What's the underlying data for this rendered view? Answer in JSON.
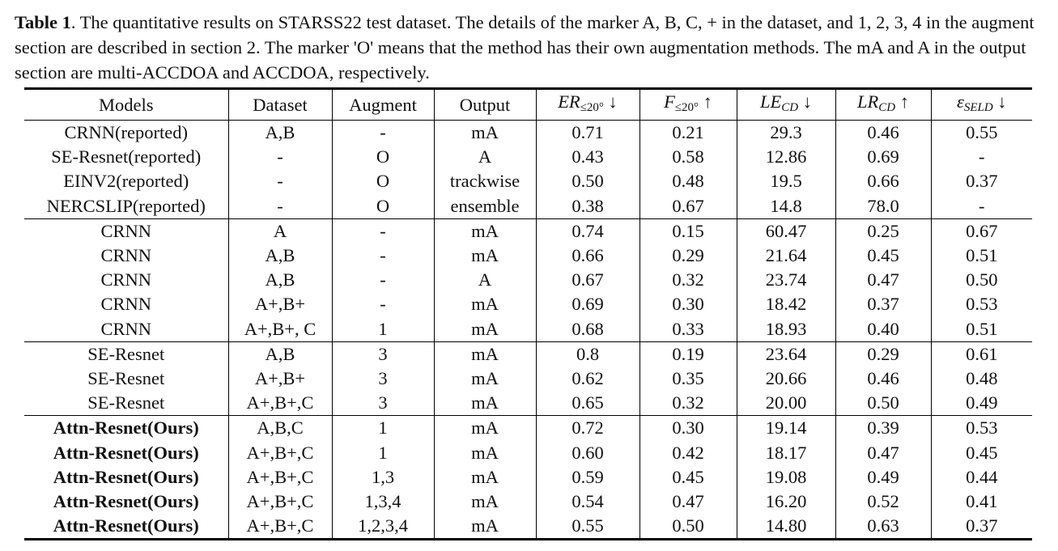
{
  "caption": {
    "label": "Table 1",
    "text": ". The quantitative results on STARSS22 test dataset. The details of the marker A, B, C, + in the dataset, and 1, 2, 3, 4 in the augment section are described in section 2. The marker 'O' means that the method has their own augmentation methods. The mA and A in the output section are multi-ACCDOA and ACCDOA, respectively."
  },
  "headers": {
    "models": "Models",
    "dataset": "Dataset",
    "augment": "Augment",
    "output": "Output",
    "er": {
      "main": "ER",
      "sub": "≤20°",
      "arrow": "↓"
    },
    "f": {
      "main": "F",
      "sub": "≤20°",
      "arrow": "↑"
    },
    "le": {
      "main": "LE",
      "sub": "CD",
      "arrow": "↓"
    },
    "lr": {
      "main": "LR",
      "sub": "CD",
      "arrow": "↑"
    },
    "seld": {
      "main": "ε",
      "sub": "SELD",
      "arrow": "↓"
    }
  },
  "rows": [
    {
      "model": "CRNN(reported)",
      "dataset": "A,B",
      "augment": "-",
      "output": "mA",
      "er": "0.71",
      "f": "0.21",
      "le": "29.3",
      "lr": "0.46",
      "seld": "0.55"
    },
    {
      "model": "SE-Resnet(reported)",
      "dataset": "-",
      "augment": "O",
      "output": "A",
      "er": "0.43",
      "f": "0.58",
      "le": "12.86",
      "lr": "0.69",
      "seld": "-"
    },
    {
      "model": "EINV2(reported)",
      "dataset": "-",
      "augment": "O",
      "output": "trackwise",
      "er": "0.50",
      "f": "0.48",
      "le": "19.5",
      "lr": "0.66",
      "seld": "0.37"
    },
    {
      "model": "NERCSLIP(reported)",
      "dataset": "-",
      "augment": "O",
      "output": "ensemble",
      "er": "0.38",
      "f": "0.67",
      "le": "14.8",
      "lr": "78.0",
      "seld": "-"
    },
    {
      "model": "CRNN",
      "dataset": "A",
      "augment": "-",
      "output": "mA",
      "er": "0.74",
      "f": "0.15",
      "le": "60.47",
      "lr": "0.25",
      "seld": "0.67"
    },
    {
      "model": "CRNN",
      "dataset": "A,B",
      "augment": "-",
      "output": "mA",
      "er": "0.66",
      "f": "0.29",
      "le": "21.64",
      "lr": "0.45",
      "seld": "0.51"
    },
    {
      "model": "CRNN",
      "dataset": "A,B",
      "augment": "-",
      "output": "A",
      "er": "0.67",
      "f": "0.32",
      "le": "23.74",
      "lr": "0.47",
      "seld": "0.50"
    },
    {
      "model": "CRNN",
      "dataset": "A+,B+",
      "augment": "-",
      "output": "mA",
      "er": "0.69",
      "f": "0.30",
      "le": "18.42",
      "lr": "0.37",
      "seld": "0.53"
    },
    {
      "model": "CRNN",
      "dataset": "A+,B+, C",
      "augment": "1",
      "output": "mA",
      "er": "0.68",
      "f": "0.33",
      "le": "18.93",
      "lr": "0.40",
      "seld": "0.51"
    },
    {
      "model": "SE-Resnet",
      "dataset": "A,B",
      "augment": "3",
      "output": "mA",
      "er": "0.8",
      "f": "0.19",
      "le": "23.64",
      "lr": "0.29",
      "seld": "0.61"
    },
    {
      "model": "SE-Resnet",
      "dataset": "A+,B+",
      "augment": "3",
      "output": "mA",
      "er": "0.62",
      "f": "0.35",
      "le": "20.66",
      "lr": "0.46",
      "seld": "0.48"
    },
    {
      "model": "SE-Resnet",
      "dataset": "A+,B+,C",
      "augment": "3",
      "output": "mA",
      "er": "0.65",
      "f": "0.32",
      "le": "20.00",
      "lr": "0.50",
      "seld": "0.49"
    },
    {
      "model": "Attn-Resnet(Ours)",
      "dataset": "A,B,C",
      "augment": "1",
      "output": "mA",
      "er": "0.72",
      "f": "0.30",
      "le": "19.14",
      "lr": "0.39",
      "seld": "0.53"
    },
    {
      "model": "Attn-Resnet(Ours)",
      "dataset": "A+,B+,C",
      "augment": "1",
      "output": "mA",
      "er": "0.60",
      "f": "0.42",
      "le": "18.17",
      "lr": "0.47",
      "seld": "0.45"
    },
    {
      "model": "Attn-Resnet(Ours)",
      "dataset": "A+,B+,C",
      "augment": "1,3",
      "output": "mA",
      "er": "0.59",
      "f": "0.45",
      "le": "19.08",
      "lr": "0.49",
      "seld": "0.44"
    },
    {
      "model": "Attn-Resnet(Ours)",
      "dataset": "A+,B+,C",
      "augment": "1,3,4",
      "output": "mA",
      "er": "0.54",
      "f": "0.47",
      "le": "16.20",
      "lr": "0.52",
      "seld": "0.41"
    },
    {
      "model": "Attn-Resnet(Ours)",
      "dataset": "A+,B+,C",
      "augment": "1,2,3,4",
      "output": "mA",
      "er": "0.55",
      "f": "0.50",
      "le": "14.80",
      "lr": "0.63",
      "seld": "0.37"
    }
  ]
}
